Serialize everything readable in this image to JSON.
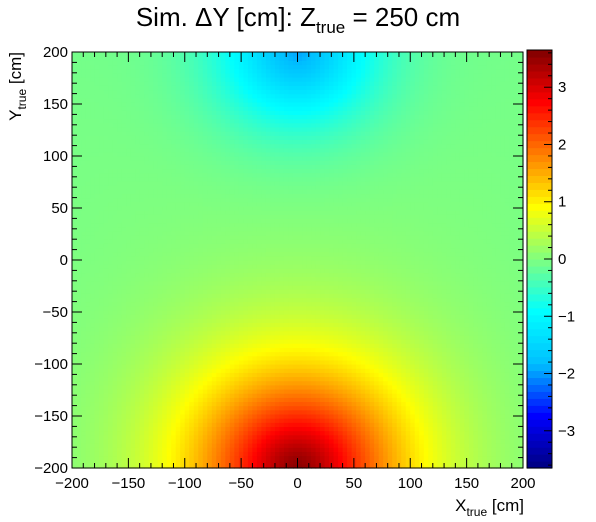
{
  "chart_data": {
    "type": "heatmap",
    "title_main": "Sim. ΔY [cm]:  Z",
    "title_sub": "true",
    "title_rest": " = 250 cm",
    "xlabel_main": "X",
    "xlabel_sub": "true",
    "xlabel_unit": " [cm]",
    "ylabel_main": "Y",
    "ylabel_sub": "true",
    "ylabel_unit": " [cm]",
    "xlim": [
      -200,
      200
    ],
    "ylim": [
      -200,
      200
    ],
    "zlim": [
      -3.65,
      3.65
    ],
    "xticks": [
      -200,
      -150,
      -100,
      -50,
      0,
      50,
      100,
      150,
      200
    ],
    "xtick_labels": [
      "−200",
      "−150",
      "−100",
      "−50",
      "0",
      "50",
      "100",
      "150",
      "200"
    ],
    "yticks": [
      200,
      150,
      100,
      50,
      0,
      -50,
      -100,
      -150,
      -200
    ],
    "ytick_labels": [
      "200",
      "150",
      "100",
      "50",
      "0",
      "−50",
      "−100",
      "−150",
      "−200"
    ],
    "zticks": [
      3,
      2,
      1,
      0,
      -1,
      -2,
      -3
    ],
    "ztick_labels": [
      "3",
      "2",
      "1",
      "0",
      "−1",
      "−2",
      "−3"
    ],
    "colormap": [
      "#00007f",
      "#0000ff",
      "#00bfff",
      "#00ffff",
      "#7fff7f",
      "#ffff00",
      "#ff7f00",
      "#ff0000",
      "#7f0000"
    ],
    "field": {
      "description_of_values": "deltaY(x,y)",
      "peak_bottom": 3.6,
      "peak_top": -1.9,
      "grid_x_bins": 100,
      "grid_y_bins": 100
    },
    "grid": false
  }
}
